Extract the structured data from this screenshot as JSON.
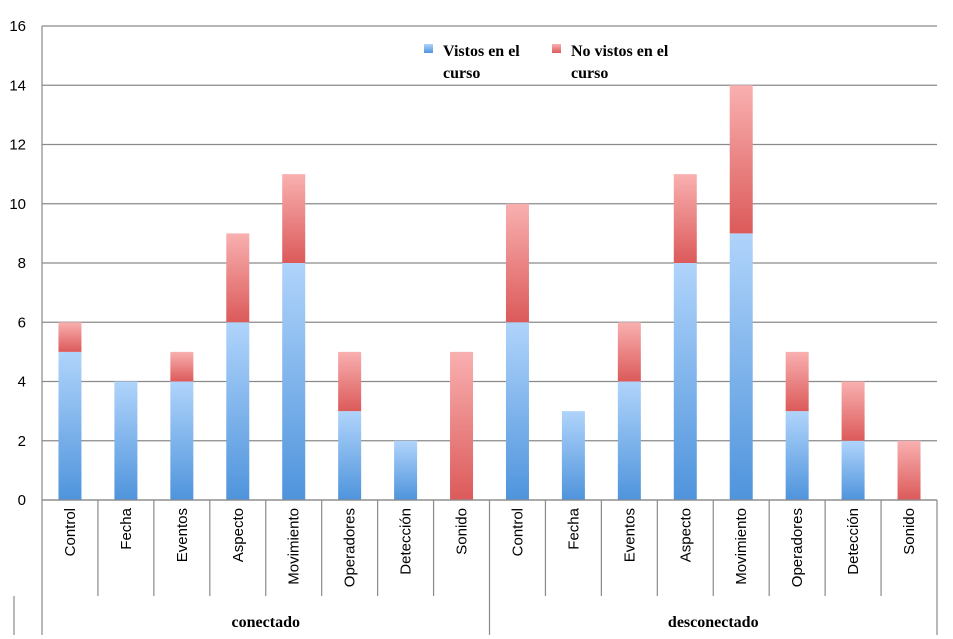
{
  "chart_data": {
    "type": "bar",
    "stacked": true,
    "ylim": [
      0,
      16
    ],
    "yticks": [
      0,
      2,
      4,
      6,
      8,
      10,
      12,
      14,
      16
    ],
    "grid": true,
    "legend_position": "top-center",
    "groups": [
      {
        "name": "conectado",
        "categories": [
          "Control",
          "Fecha",
          "Eventos",
          "Aspecto",
          "Movimiento",
          "Operadores",
          "Detección",
          "Sonido"
        ]
      },
      {
        "name": "desconectado",
        "categories": [
          "Control",
          "Fecha",
          "Eventos",
          "Aspecto",
          "Movimiento",
          "Operadores",
          "Detección",
          "Sonido"
        ]
      }
    ],
    "series": [
      {
        "name": "Vistos en el curso",
        "legend_lines": [
          "Vistos en el",
          "curso"
        ],
        "color": "#4f94dc",
        "values": [
          5,
          4,
          4,
          6,
          8,
          3,
          2,
          0,
          6,
          3,
          4,
          8,
          9,
          3,
          2,
          0
        ]
      },
      {
        "name": "No vistos en el curso",
        "legend_lines": [
          "No vistos en el",
          "curso"
        ],
        "color": "#e06666",
        "values": [
          1,
          0,
          1,
          3,
          3,
          2,
          0,
          5,
          4,
          0,
          2,
          3,
          5,
          2,
          2,
          2
        ]
      }
    ]
  }
}
